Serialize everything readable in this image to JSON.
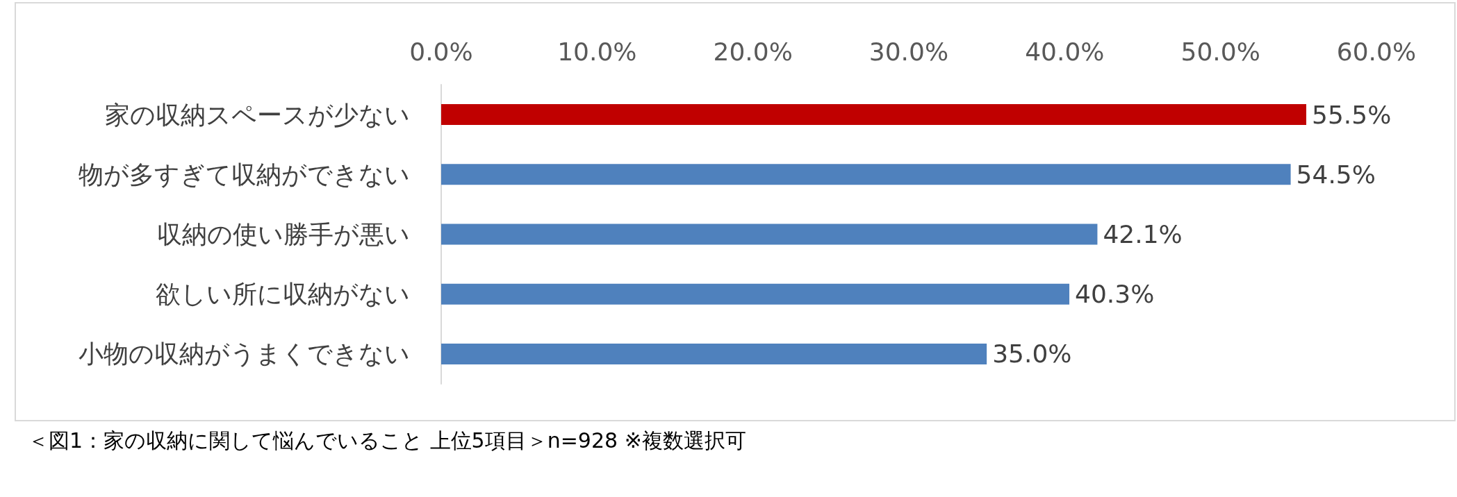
{
  "chart_data": {
    "type": "bar",
    "orientation": "horizontal",
    "categories": [
      "家の収納スペースが少ない",
      "物が多すぎて収納ができない",
      "収納の使い勝手が悪い",
      "欲しい所に収納がない",
      "小物の収納がうまくできない"
    ],
    "values": [
      55.5,
      54.5,
      42.1,
      40.3,
      35.0
    ],
    "colors": [
      "#c00000",
      "#4f81bd",
      "#4f81bd",
      "#4f81bd",
      "#4f81bd"
    ],
    "value_labels": [
      "55.5%",
      "54.5%",
      "42.1%",
      "40.3%",
      "35.0%"
    ],
    "xlim": [
      0,
      60
    ],
    "xticks": [
      {
        "value": 0,
        "label": "0.0%"
      },
      {
        "value": 10,
        "label": "10.0%"
      },
      {
        "value": 20,
        "label": "20.0%"
      },
      {
        "value": 30,
        "label": "30.0%"
      },
      {
        "value": 40,
        "label": "40.0%"
      },
      {
        "value": 50,
        "label": "50.0%"
      },
      {
        "value": 60,
        "label": "60.0%"
      }
    ],
    "grid": false,
    "annotations": [
      "＜図1：家の収納に関して悩んでいること 上位5項目＞n=928 ※複数選択可"
    ]
  }
}
